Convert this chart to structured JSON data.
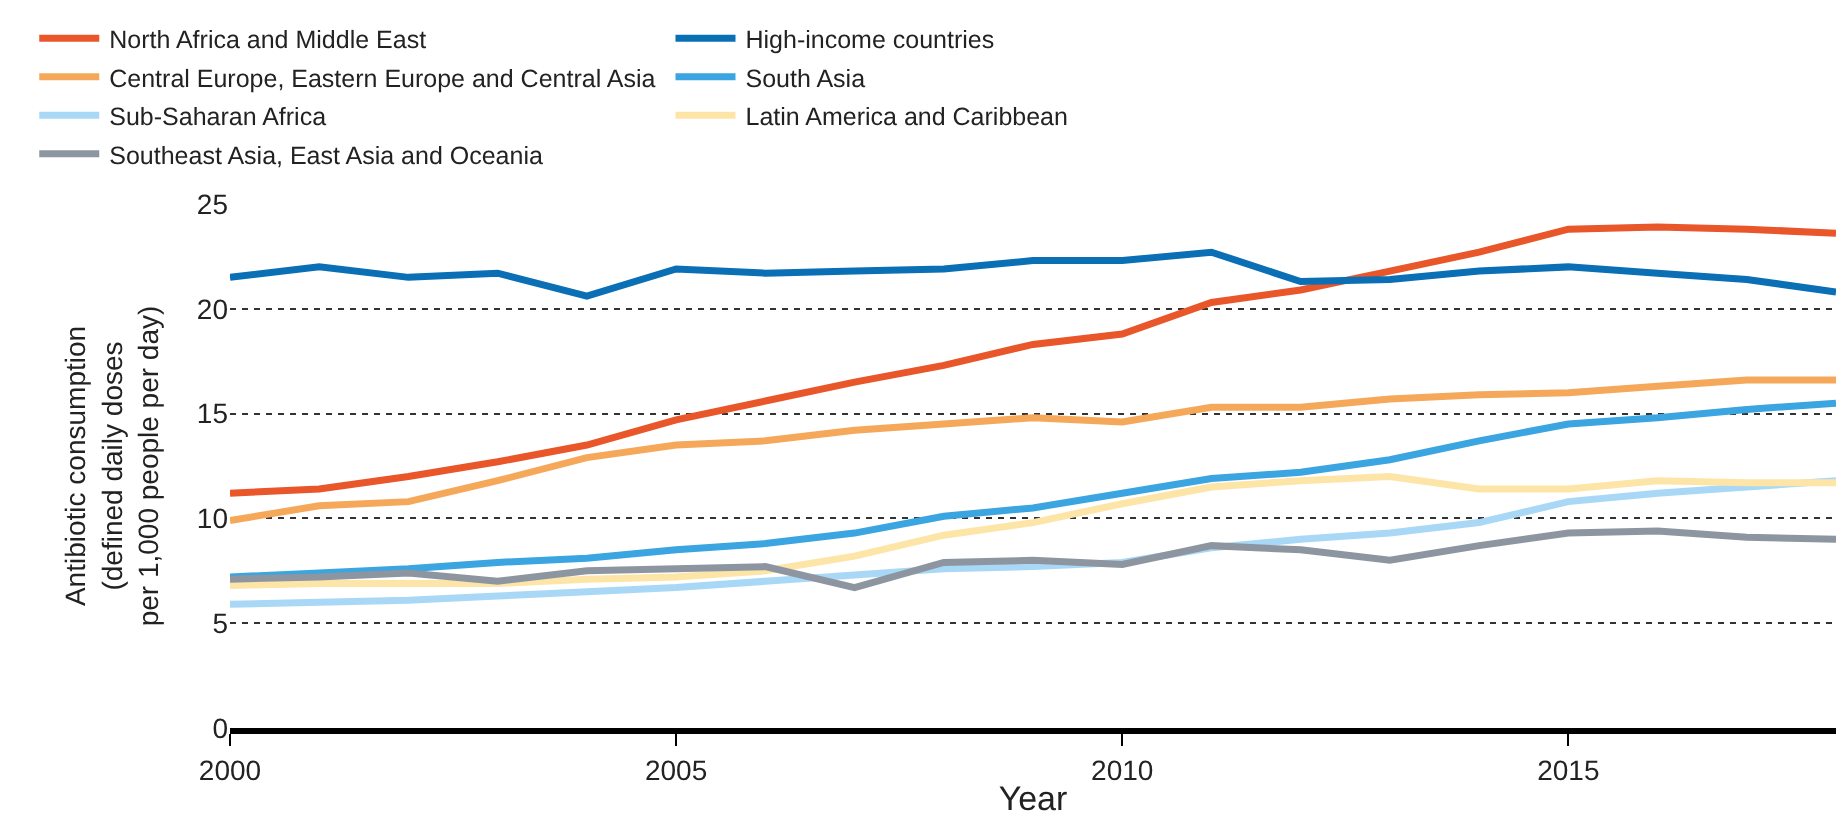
{
  "chart_data": {
    "type": "line",
    "xlabel": "Year",
    "ylabel": "Antibiotic consumption\n(defined daily doses\nper 1,000 people per day)",
    "x": [
      2000,
      2001,
      2002,
      2003,
      2004,
      2005,
      2006,
      2007,
      2008,
      2009,
      2010,
      2011,
      2012,
      2013,
      2014,
      2015,
      2016,
      2017,
      2018
    ],
    "xlim": [
      2000,
      2018
    ],
    "xticks": [
      2000,
      2005,
      2010,
      2015
    ],
    "ylim": [
      0,
      25
    ],
    "yticks": [
      0,
      5,
      10,
      15,
      20,
      25
    ],
    "grid": "y",
    "legend": "top",
    "marker": "none",
    "line_style": "solid",
    "series": [
      {
        "name": "North Africa and Middle East",
        "color": "#e8562a",
        "values": [
          11.2,
          11.4,
          12.0,
          12.7,
          13.5,
          14.7,
          15.6,
          16.5,
          17.3,
          18.3,
          18.8,
          20.3,
          20.9,
          21.8,
          22.7,
          23.8,
          23.9,
          23.8,
          23.6
        ]
      },
      {
        "name": "High-income countries",
        "color": "#0a6fb5",
        "values": [
          21.5,
          22.0,
          21.5,
          21.7,
          20.6,
          21.9,
          21.7,
          21.8,
          21.9,
          22.3,
          22.3,
          22.7,
          21.3,
          21.4,
          21.8,
          22.0,
          21.7,
          21.4,
          20.8
        ]
      },
      {
        "name": "Central Europe, Eastern Europe and Central Asia",
        "color": "#f6a85a",
        "values": [
          9.9,
          10.6,
          10.8,
          11.8,
          12.9,
          13.5,
          13.7,
          14.2,
          14.5,
          14.8,
          14.6,
          15.3,
          15.3,
          15.7,
          15.9,
          16.0,
          16.3,
          16.6,
          16.6
        ]
      },
      {
        "name": "South Asia",
        "color": "#3aa5e0",
        "values": [
          7.2,
          7.4,
          7.6,
          7.9,
          8.1,
          8.5,
          8.8,
          9.3,
          10.1,
          10.5,
          11.2,
          11.9,
          12.2,
          12.8,
          13.7,
          14.5,
          14.8,
          15.2,
          15.5
        ]
      },
      {
        "name": "Sub-Saharan Africa",
        "color": "#a9d8f7",
        "values": [
          5.9,
          6.0,
          6.1,
          6.3,
          6.5,
          6.7,
          7.0,
          7.3,
          7.6,
          7.7,
          7.9,
          8.6,
          9.0,
          9.3,
          9.8,
          10.8,
          11.2,
          11.5,
          11.8
        ]
      },
      {
        "name": "Latin America and Caribbean",
        "color": "#fde5a8",
        "values": [
          6.8,
          6.9,
          6.9,
          6.9,
          7.1,
          7.2,
          7.5,
          8.2,
          9.2,
          9.8,
          10.7,
          11.5,
          11.8,
          12.0,
          11.4,
          11.4,
          11.8,
          11.7,
          11.7
        ]
      },
      {
        "name": "Southeast Asia, East Asia and Oceania",
        "color": "#8d96a0",
        "values": [
          7.1,
          7.2,
          7.4,
          7.0,
          7.5,
          7.6,
          7.7,
          6.7,
          7.9,
          8.0,
          7.8,
          8.7,
          8.5,
          8.0,
          8.7,
          9.3,
          9.4,
          9.1,
          9.0
        ]
      }
    ]
  }
}
